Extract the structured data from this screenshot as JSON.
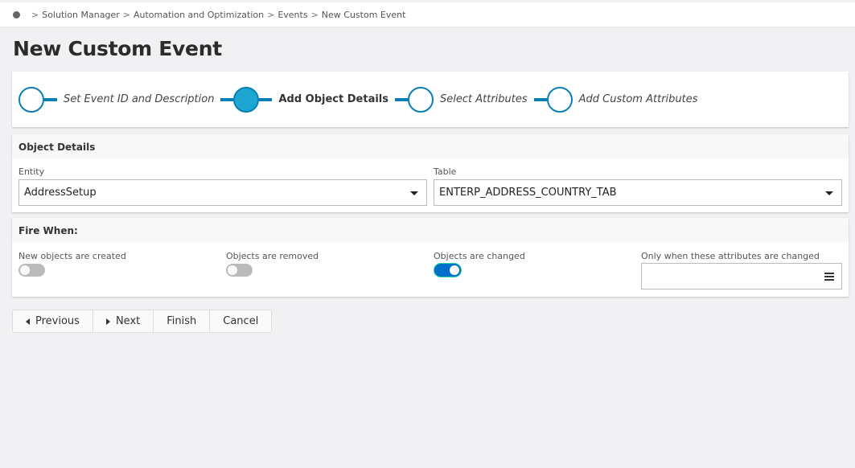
{
  "breadcrumb": [
    "Solution Manager",
    "Automation and Optimization",
    "Events",
    "New Custom Event"
  ],
  "title": "New Custom Event",
  "steps": [
    {
      "label": "Set Event ID and Description"
    },
    {
      "label": "Add Object Details",
      "active": true
    },
    {
      "label": "Select Attributes"
    },
    {
      "label": "Add Custom Attributes"
    }
  ],
  "object_details": {
    "heading": "Object Details",
    "entity_label": "Entity",
    "entity_value": "AddressSetup",
    "table_label": "Table",
    "table_value": "ENTERP_ADDRESS_COUNTRY_TAB"
  },
  "fire_when": {
    "heading": "Fire When:",
    "created_label": "New objects are created",
    "created_on": false,
    "removed_label": "Objects are removed",
    "removed_on": false,
    "changed_label": "Objects are changed",
    "changed_on": true,
    "attributes_label": "Only when these attributes are changed",
    "attributes_value": ""
  },
  "buttons": {
    "previous": "Previous",
    "next": "Next",
    "finish": "Finish",
    "cancel": "Cancel"
  },
  "colors": {
    "accent": "#0a7fb5",
    "toggle_on": "#0070c9"
  }
}
